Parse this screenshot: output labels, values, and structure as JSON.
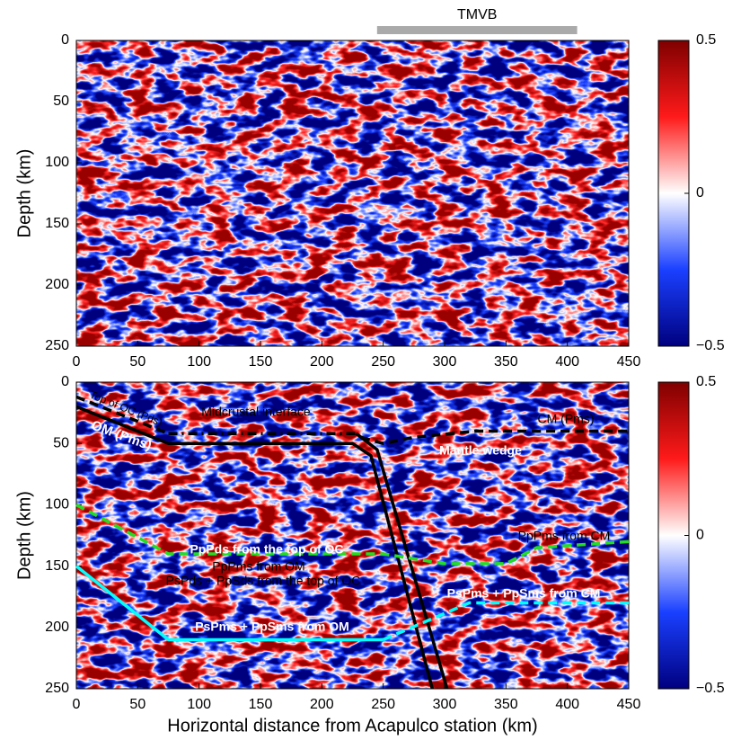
{
  "chart_data": [
    {
      "type": "heatmap",
      "ylabel": "Depth (km)",
      "xlim": [
        0,
        450
      ],
      "xticks": [
        0,
        50,
        100,
        150,
        200,
        250,
        300,
        350,
        400,
        450
      ],
      "ylim": [
        250,
        0
      ],
      "yticks": [
        0,
        50,
        100,
        150,
        200,
        250
      ],
      "colorbar": {
        "lim": [
          -0.5,
          0.5
        ],
        "ticks": [
          0.5,
          0,
          {
            "value": -0.5,
            "label": "−0.5"
          }
        ]
      },
      "band": {
        "label": "TMVB",
        "x": [
          245,
          408
        ],
        "color": "#aaaaaa"
      }
    },
    {
      "type": "heatmap",
      "ylabel": "Depth (km)",
      "xlabel": "Horizontal distance from Acapulco station (km)",
      "xlim": [
        0,
        450
      ],
      "xticks": [
        0,
        50,
        100,
        150,
        200,
        250,
        300,
        350,
        400,
        450
      ],
      "ylim": [
        250,
        0
      ],
      "yticks": [
        0,
        50,
        100,
        150,
        200,
        250
      ],
      "colorbar": {
        "lim": [
          -0.5,
          0.5
        ],
        "ticks": [
          0.5,
          0,
          {
            "value": -0.5,
            "label": "−0.5"
          }
        ]
      },
      "lines": [
        {
          "color": "#000000",
          "style": "dashed",
          "x": [
            0,
            75
          ],
          "y": [
            12,
            42
          ]
        },
        {
          "color": "#000000",
          "style": "dashdot",
          "x": [
            75,
            230
          ],
          "y": [
            42,
            42
          ]
        },
        {
          "color": "#000000",
          "style": "solid",
          "x": [
            0,
            75,
            225,
            240,
            290
          ],
          "y": [
            20,
            50,
            50,
            60,
            250
          ]
        },
        {
          "color": "#000000",
          "style": "solid",
          "x": [
            228,
            245,
            302
          ],
          "y": [
            42,
            55,
            250
          ]
        },
        {
          "color": "#000000",
          "style": "dashed",
          "x": [
            232,
            250,
            275,
            325,
            450
          ],
          "y": [
            45,
            50,
            45,
            40,
            40
          ]
        },
        {
          "color": "#22dd22",
          "style": "dashed",
          "x": [
            0,
            75,
            250,
            300,
            350,
            375,
            450
          ],
          "y": [
            100,
            140,
            140,
            148,
            148,
            135,
            130
          ]
        },
        {
          "color": "#00ffff",
          "style": "solid",
          "x": [
            0,
            75,
            250
          ],
          "y": [
            150,
            210,
            210
          ]
        },
        {
          "color": "#00ffff",
          "style": "dashed",
          "x": [
            250,
            320,
            450
          ],
          "y": [
            210,
            180,
            180
          ]
        }
      ],
      "annotations": [
        "Top of OC (Pds)",
        "Midcrustal interface",
        "CM (Pms)",
        "OM (Pms)",
        "Mantle wedge",
        "PpPds from the top of OC",
        "PpPms from OM",
        "PsPds + PpSds from the top of OC",
        "PpPms from CM",
        "PsPms + PpSms from CM",
        "PsPms + PpSms from OM"
      ]
    }
  ]
}
